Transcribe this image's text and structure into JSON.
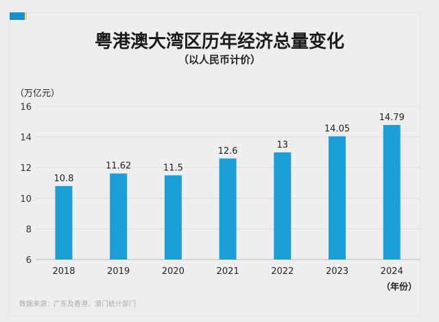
{
  "title": "粤港澳大湾区历年经济总量变化",
  "subtitle": "（以人民币计价）",
  "source": "数据来源：广东及香港、澳门统计部门",
  "colors": {
    "bar": "#1a9fd8",
    "accent": "#1a8fcf"
  },
  "chart_data": {
    "type": "bar",
    "title": "粤港澳大湾区历年经济总量变化",
    "subtitle": "（以人民币计价）",
    "ylabel": "（万亿元）",
    "xlabel": "（年份）",
    "categories": [
      "2018",
      "2019",
      "2020",
      "2021",
      "2022",
      "2023",
      "2024"
    ],
    "values": [
      10.8,
      11.62,
      11.5,
      12.6,
      13,
      14.05,
      14.79
    ],
    "value_labels": [
      "10.8",
      "11.62",
      "11.5",
      "12.6",
      "13",
      "14.05",
      "14.79"
    ],
    "ylim": [
      6,
      16
    ],
    "yticks": [
      "6",
      "8",
      "10",
      "12",
      "14",
      "16"
    ],
    "grid": true
  }
}
